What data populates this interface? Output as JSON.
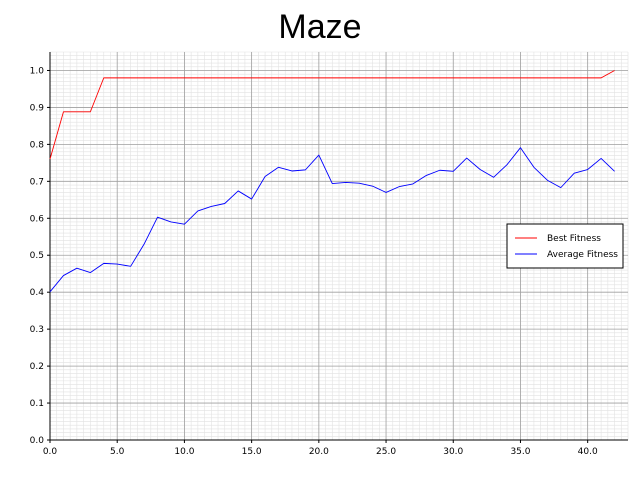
{
  "chart_data": {
    "type": "line",
    "title": "Maze",
    "xlabel": "",
    "ylabel": "",
    "xlim": [
      0,
      43
    ],
    "ylim": [
      0,
      1.05
    ],
    "x_ticks": [
      "0.0",
      "5.0",
      "10.0",
      "15.0",
      "20.0",
      "25.0",
      "30.0",
      "35.0",
      "40.0"
    ],
    "y_ticks": [
      "0.0",
      "0.1",
      "0.2",
      "0.3",
      "0.4",
      "0.5",
      "0.6",
      "0.7",
      "0.8",
      "0.9",
      "1.0"
    ],
    "grid": true,
    "legend_position": "right",
    "series": [
      {
        "name": "Best Fitness",
        "color": "#ff0000",
        "x": [
          0,
          1,
          2,
          3,
          4,
          5,
          6,
          7,
          8,
          9,
          10,
          11,
          12,
          13,
          14,
          15,
          16,
          17,
          18,
          19,
          20,
          21,
          22,
          23,
          24,
          25,
          26,
          27,
          28,
          29,
          30,
          31,
          32,
          33,
          34,
          35,
          36,
          37,
          38,
          39,
          40,
          41,
          42
        ],
        "values": [
          0.76,
          0.888,
          0.888,
          0.888,
          0.98,
          0.98,
          0.98,
          0.98,
          0.98,
          0.98,
          0.98,
          0.98,
          0.98,
          0.98,
          0.98,
          0.98,
          0.98,
          0.98,
          0.98,
          0.98,
          0.98,
          0.98,
          0.98,
          0.98,
          0.98,
          0.98,
          0.98,
          0.98,
          0.98,
          0.98,
          0.98,
          0.98,
          0.98,
          0.98,
          0.98,
          0.98,
          0.98,
          0.98,
          0.98,
          0.98,
          0.98,
          0.98,
          1.0
        ]
      },
      {
        "name": "Average Fitness",
        "color": "#0000ff",
        "x": [
          0,
          1,
          2,
          3,
          4,
          5,
          6,
          7,
          8,
          9,
          10,
          11,
          12,
          13,
          14,
          15,
          16,
          17,
          18,
          19,
          20,
          21,
          22,
          23,
          24,
          25,
          26,
          27,
          28,
          29,
          30,
          31,
          32,
          33,
          34,
          35,
          36,
          37,
          38,
          39,
          40,
          41,
          42
        ],
        "values": [
          0.401,
          0.445,
          0.465,
          0.453,
          0.478,
          0.476,
          0.47,
          0.53,
          0.603,
          0.59,
          0.584,
          0.62,
          0.632,
          0.64,
          0.674,
          0.652,
          0.713,
          0.738,
          0.728,
          0.731,
          0.771,
          0.694,
          0.697,
          0.695,
          0.687,
          0.67,
          0.686,
          0.693,
          0.716,
          0.73,
          0.727,
          0.763,
          0.732,
          0.711,
          0.745,
          0.791,
          0.738,
          0.703,
          0.683,
          0.722,
          0.732,
          0.762,
          0.727
        ]
      }
    ]
  }
}
